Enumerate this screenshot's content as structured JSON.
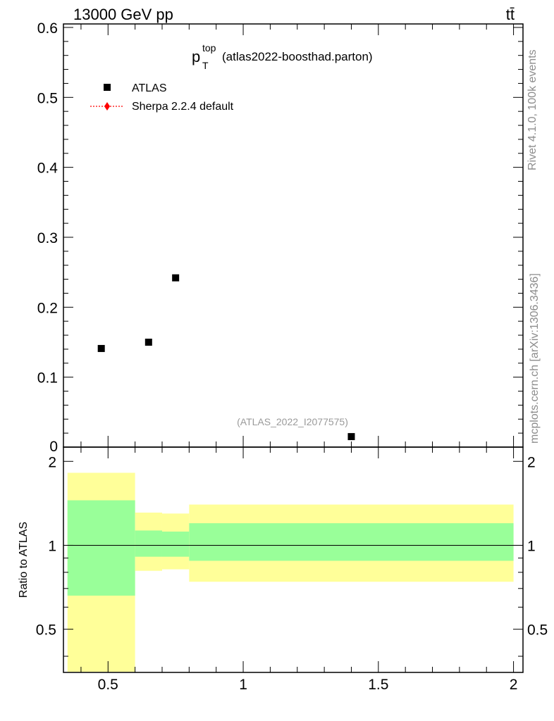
{
  "header": {
    "left": "13000 GeV pp",
    "right": "tt̄"
  },
  "title": {
    "main": "p",
    "sup": "top",
    "sub": "T",
    "rest": "(atlas2022-boosthad.parton)"
  },
  "watermark": "(ATLAS_2022_I2077575)",
  "side_labels": {
    "rivet": "Rivet 4.1.0,  100k events",
    "mcplots": "mcplots.cern.ch [arXiv:1306.3436]"
  },
  "legend": [
    {
      "label": "ATLAS",
      "color": "#000000",
      "marker": "square"
    },
    {
      "label": "Sherpa 2.2.4 default",
      "color": "#ff0000",
      "marker": "diamond-dotted-line"
    }
  ],
  "chart_data": [
    {
      "type": "scatter",
      "panel": "main",
      "title": "p_T^top (atlas2022-boosthad.parton)",
      "xlim": [
        0.335,
        2.035
      ],
      "ylim": [
        0,
        0.605
      ],
      "y_ticks": [
        0.1,
        0.2,
        0.3,
        0.4,
        0.5,
        0.6
      ],
      "y_tick_labels": [
        "0.1",
        "0.2",
        "0.3",
        "0.4",
        "0.5",
        "0.6"
      ],
      "y_zero_label": "0",
      "series": [
        {
          "name": "ATLAS",
          "points": [
            {
              "x": 0.475,
              "y": 0.141
            },
            {
              "x": 0.65,
              "y": 0.15
            },
            {
              "x": 0.75,
              "y": 0.242
            },
            {
              "x": 1.4,
              "y": 0.015
            }
          ]
        }
      ]
    },
    {
      "type": "area",
      "panel": "ratio",
      "ylabel": "Ratio to ATLAS",
      "xlim": [
        0.335,
        2.035
      ],
      "ylim": [
        0.35,
        2.25
      ],
      "x_ticks": [
        0.5,
        1,
        1.5,
        2
      ],
      "x_tick_labels": [
        "0.5",
        "1",
        "1.5",
        "2"
      ],
      "y_ticks": [
        0.5,
        1,
        2
      ],
      "y_tick_labels": [
        "0.5",
        "1",
        "2"
      ],
      "reference_line": 1,
      "bands": [
        {
          "x0": 0.35,
          "x1": 0.6,
          "inner": [
            0.66,
            1.45
          ],
          "outer": [
            0.35,
            1.82
          ]
        },
        {
          "x0": 0.6,
          "x1": 0.7,
          "inner": [
            0.91,
            1.13
          ],
          "outer": [
            0.81,
            1.31
          ]
        },
        {
          "x0": 0.7,
          "x1": 0.8,
          "inner": [
            0.91,
            1.12
          ],
          "outer": [
            0.82,
            1.3
          ]
        },
        {
          "x0": 0.8,
          "x1": 2.0,
          "inner": [
            0.88,
            1.2
          ],
          "outer": [
            0.74,
            1.4
          ]
        }
      ],
      "band_colors": {
        "inner": "#99ff99",
        "outer": "#ffff99"
      }
    }
  ]
}
